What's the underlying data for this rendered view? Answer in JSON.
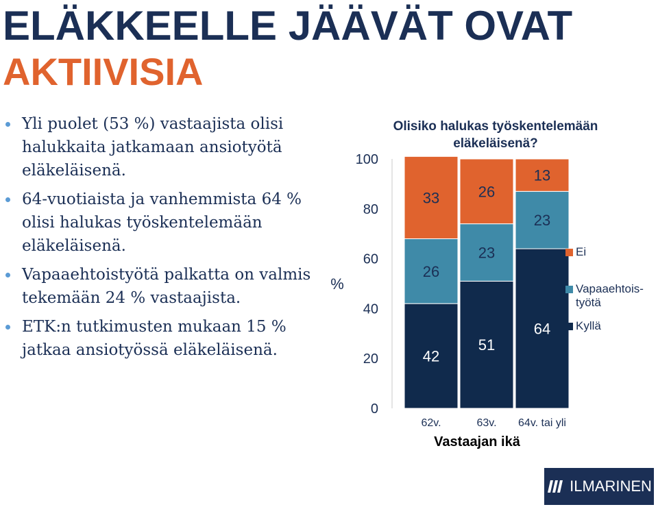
{
  "slide": {
    "title_line1": "ELÄKKEELLE JÄÄVÄT OVAT",
    "title_line2": "AKTIIVISIA",
    "bullets": [
      "Yli puolet (53 %) vastaajista olisi halukkaita jatkamaan ansiotyötä eläkeläisenä.",
      "64-vuotiaista ja vanhemmista 64 % olisi halukas työskentelemään eläkeläisenä.",
      "Vapaaehtoistyötä palkatta on valmis tekemään 24 % vastaajista.",
      "ETK:n tutkimusten mukaan 15 %  jatkaa ansiotyössä eläkeläisenä."
    ],
    "logo_text": "ILMARINEN"
  },
  "colors": {
    "title_navy": "#1b2f55",
    "title_orange": "#e0632e",
    "bullet_dot": "#5b9bd5",
    "series_kylla": "#102a4c",
    "series_vapaaehtois": "#3f8aa8",
    "series_ei": "#e0632e"
  },
  "chart_data": {
    "type": "bar",
    "stacked": true,
    "title": "Olisiko halukas työskentelemään eläkeläisenä?",
    "xlabel": "Vastaajan ikä",
    "ylabel": "%",
    "categories": [
      "62v.",
      "63v.",
      "64v. tai yli"
    ],
    "series": [
      {
        "name": "Kyllä",
        "values": [
          42,
          51,
          64
        ]
      },
      {
        "name": "Vapaaehtoistyötä",
        "legend_lines": [
          "Vapaaehtois-",
          "työtä"
        ],
        "values": [
          26,
          23,
          23
        ]
      },
      {
        "name": "Ei",
        "values": [
          33,
          26,
          13
        ]
      }
    ],
    "ylim": [
      0,
      100
    ],
    "yticks": [
      0,
      20,
      40,
      60,
      80,
      100
    ],
    "legend_position": "right",
    "grid": false
  }
}
